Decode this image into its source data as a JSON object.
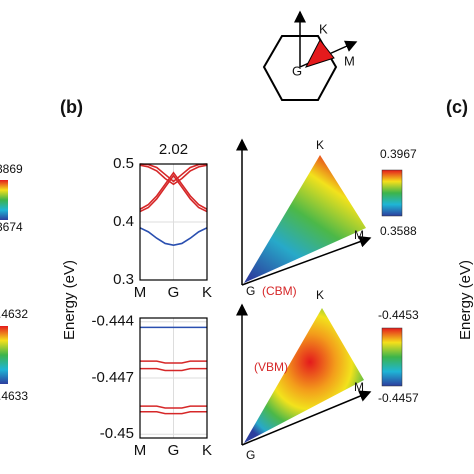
{
  "chart_data": [
    {
      "type": "line",
      "title": "2.02",
      "categories": [
        "M",
        null,
        null,
        null,
        "G",
        null,
        null,
        null,
        "K"
      ],
      "ylim": [
        0.3,
        0.5
      ],
      "yticks": [
        0.3,
        0.4,
        0.5
      ],
      "grid": true,
      "series": [
        {
          "color": "#2a4fb0",
          "values": [
            0.39,
            0.383,
            0.372,
            0.363,
            0.36,
            0.363,
            0.372,
            0.383,
            0.39
          ]
        },
        {
          "color": "#d62728",
          "values": [
            0.418,
            0.425,
            0.44,
            0.46,
            0.48,
            0.46,
            0.44,
            0.425,
            0.418
          ]
        },
        {
          "color": "#d62728",
          "values": [
            0.422,
            0.43,
            0.445,
            0.465,
            0.485,
            0.465,
            0.445,
            0.43,
            0.422
          ]
        },
        {
          "color": "#d62728",
          "values": [
            0.498,
            0.495,
            0.488,
            0.475,
            0.465,
            0.475,
            0.488,
            0.495,
            0.498
          ]
        },
        {
          "color": "#d62728",
          "values": [
            0.5,
            0.499,
            0.494,
            0.482,
            0.47,
            0.482,
            0.494,
            0.499,
            0.5
          ]
        }
      ]
    },
    {
      "type": "line",
      "categories": [
        "M",
        null,
        null,
        null,
        "G",
        null,
        null,
        null,
        "K"
      ],
      "ylim": [
        -0.4502,
        -0.4438
      ],
      "yticks": [
        -0.45,
        -0.447,
        -0.444
      ],
      "grid": true,
      "series": [
        {
          "color": "#2a4fb0",
          "values": [
            -0.4443,
            -0.4443,
            -0.4443,
            -0.4443,
            -0.4443,
            -0.4443,
            -0.4443,
            -0.4443,
            -0.4443
          ]
        },
        {
          "color": "#d62728",
          "values": [
            -0.4461,
            -0.4461,
            -0.4461,
            -0.4462,
            -0.4462,
            -0.4462,
            -0.4461,
            -0.4461,
            -0.4461
          ]
        },
        {
          "color": "#d62728",
          "values": [
            -0.4465,
            -0.4465,
            -0.4465,
            -0.4466,
            -0.4466,
            -0.4466,
            -0.4465,
            -0.4465,
            -0.4465
          ]
        },
        {
          "color": "#d62728",
          "values": [
            -0.4485,
            -0.4485,
            -0.4485,
            -0.4486,
            -0.4486,
            -0.4486,
            -0.4485,
            -0.4485,
            -0.4485
          ]
        },
        {
          "color": "#d62728",
          "values": [
            -0.4488,
            -0.4488,
            -0.4488,
            -0.4489,
            -0.4489,
            -0.4489,
            -0.4488,
            -0.4488,
            -0.4488
          ]
        }
      ]
    }
  ],
  "figure": {
    "panel_b": "(b)",
    "panel_c": "(c)",
    "y_label": "Energy (eV)",
    "y_label_c": "Energy (eV)",
    "inset": {
      "k": "K",
      "m": "M",
      "g": "G"
    },
    "cbm_triangle": {
      "k": "K",
      "m": "M",
      "g": "G",
      "note": "(CBM)"
    },
    "vbm_triangle": {
      "k": "K",
      "m": "M",
      "g": "G",
      "note": "(VBM)"
    },
    "colorbar_cbm": {
      "max": 0.3967,
      "min": 0.3588
    },
    "colorbar_vbm": {
      "max": -0.4453,
      "min": -0.4457
    },
    "cut_labels": [
      "3869",
      "3674",
      ".4632",
      ".4633"
    ]
  }
}
